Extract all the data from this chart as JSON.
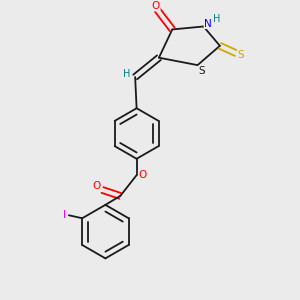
{
  "bg_color": "#ebebeb",
  "bond_color": "#1a1a1a",
  "atom_colors": {
    "O": "#ff0000",
    "N": "#0000ff",
    "S_thio": "#ccaa00",
    "S_ring": "#1a1a1a",
    "H": "#008080",
    "I": "#ee00ee"
  },
  "font_size": 7.5,
  "lw": 1.3
}
